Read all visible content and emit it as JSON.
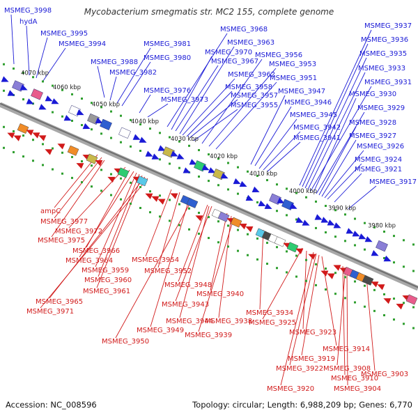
{
  "title": "Mycobacterium smegmatis str. MC2 155, complete genome",
  "footer": {
    "accession": "Accession: NC_008596",
    "summary": "Topology: circular; Length: 6,988,209 bp; Genes: 6,770"
  },
  "scale_labels": [
    "4070 kbp",
    "4060 kbp",
    "4050 kbp",
    "4040 kbp",
    "4030 kbp",
    "4020 kbp",
    "4010 kbp",
    "4000 kbp",
    "3990 kbp",
    "3980 kbp"
  ],
  "plus_strand_labels": [
    "MSMEG_3998",
    "hydA",
    "MSMEG_3995",
    "MSMEG_3994",
    "MSMEG_3988",
    "MSMEG_3982",
    "MSMEG_3981",
    "MSMEG_3980",
    "MSMEG_3976",
    "MSMEG_3973",
    "MSMEG_3968",
    "MSMEG_3970",
    "MSMEG_3967",
    "MSMEG_3963",
    "MSMEG_3962",
    "MSMEG_3958",
    "MSMEG_3957",
    "MSMEG_3955",
    "MSMEG_3956",
    "MSMEG_3953",
    "MSMEG_3951",
    "MSMEG_3947",
    "MSMEG_3946",
    "MSMEG_3945",
    "MSMEG_3942",
    "MSMEG_3941",
    "MSMEG_3937",
    "MSMEG_3936",
    "MSMEG_3935",
    "MSMEG_3933",
    "MSMEG_3931",
    "MSMEG_3930",
    "MSMEG_3929",
    "MSMEG_3928",
    "MSMEG_3927",
    "MSMEG_3926",
    "MSMEG_3924",
    "MSMEG_3921",
    "MSMEG_3917"
  ],
  "minus_strand_labels": [
    "ampC",
    "MSMEG_3977",
    "MSMEG_3975",
    "MSMEG_3972",
    "MSMEG_3966",
    "MSMEG_3964",
    "MSMEG_3959",
    "MSMEG_3960",
    "MSMEG_3961",
    "MSMEG_3965",
    "MSMEG_3971",
    "MSMEG_3954",
    "MSMEG_3952",
    "MSMEG_3948",
    "MSMEG_3943",
    "MSMEG_3940",
    "MSMEG_3944",
    "MSMEG_3938",
    "MSMEG_3949",
    "MSMEG_3950",
    "MSMEG_3939",
    "MSMEG_3934",
    "MSMEG_3925",
    "MSMEG_3923",
    "MSMEG_3914",
    "MSMEG_3919",
    "MSMEG_3922",
    "MSMEG_3920",
    "MSMEG_3908",
    "MSMEG_3910",
    "MSMEG_3904",
    "MSMEG_3903"
  ],
  "colors": {
    "plus_strand": "#1a1ad6",
    "minus_strand": "#d11a1a",
    "backbone": "#888888",
    "tick": "#2e9e2e"
  }
}
